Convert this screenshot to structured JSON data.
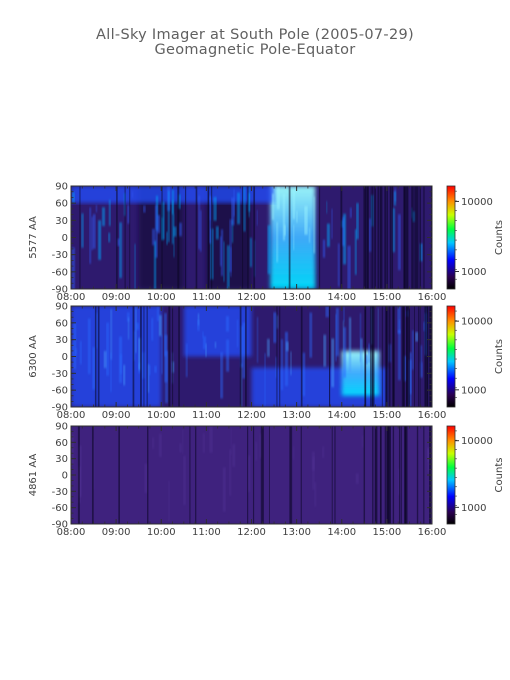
{
  "title_line1": "All-Sky Imager at South Pole (2005-07-29)",
  "title_line2": "Geomagnetic Pole-Equator",
  "chart_data": [
    {
      "type": "heatmap",
      "ylabel": "5577 AA",
      "x_ticks": [
        "08:00",
        "09:00",
        "10:00",
        "11:00",
        "12:00",
        "13:00",
        "14:00",
        "15:00",
        "16:00"
      ],
      "x_range": [
        "08:00",
        "16:00"
      ],
      "y_ticks": [
        90,
        60,
        30,
        0,
        -30,
        -60,
        -90
      ],
      "ylim": [
        -90,
        90
      ],
      "colorbar": {
        "label": "Counts",
        "ticks": [
          "10000",
          "1000"
        ],
        "scale": "log"
      },
      "features": [
        {
          "start": "12:25",
          "end": "13:25",
          "lat_min": -90,
          "lat_max": 90,
          "intensity": "high"
        },
        {
          "start": "09:30",
          "end": "10:30",
          "lat_min": -90,
          "lat_max": 90,
          "intensity": "low"
        },
        {
          "start": "11:00",
          "end": "12:00",
          "lat_min": -90,
          "lat_max": 90,
          "intensity": "low"
        },
        {
          "start": "08:00",
          "end": "12:30",
          "lat_min": 60,
          "lat_max": 90,
          "intensity": "medium"
        }
      ]
    },
    {
      "type": "heatmap",
      "ylabel": "6300 AA",
      "x_ticks": [
        "08:00",
        "09:00",
        "10:00",
        "11:00",
        "12:00",
        "13:00",
        "14:00",
        "15:00",
        "16:00"
      ],
      "x_range": [
        "08:00",
        "16:00"
      ],
      "y_ticks": [
        90,
        60,
        30,
        0,
        -30,
        -60,
        -90
      ],
      "ylim": [
        -90,
        90
      ],
      "colorbar": {
        "label": "Counts",
        "ticks": [
          "10000",
          "1000"
        ],
        "scale": "log"
      },
      "features": [
        {
          "start": "08:00",
          "end": "10:00",
          "lat_min": -90,
          "lat_max": 90,
          "intensity": "medium"
        },
        {
          "start": "10:30",
          "end": "12:00",
          "lat_min": 0,
          "lat_max": 90,
          "intensity": "medium"
        },
        {
          "start": "12:00",
          "end": "15:00",
          "lat_min": -90,
          "lat_max": -20,
          "intensity": "medium"
        },
        {
          "start": "14:00",
          "end": "14:50",
          "lat_min": -70,
          "lat_max": 10,
          "intensity": "high"
        }
      ]
    },
    {
      "type": "heatmap",
      "ylabel": "4861 AA",
      "x_ticks": [
        "08:00",
        "09:00",
        "10:00",
        "11:00",
        "12:00",
        "13:00",
        "14:00",
        "15:00",
        "16:00"
      ],
      "x_range": [
        "08:00",
        "16:00"
      ],
      "y_ticks": [
        90,
        60,
        30,
        0,
        -30,
        -60,
        -90
      ],
      "ylim": [
        -90,
        90
      ],
      "colorbar": {
        "label": "Counts",
        "ticks": [
          "10000",
          "1000"
        ],
        "scale": "log"
      },
      "features": [
        {
          "start": "08:00",
          "end": "16:00",
          "lat_min": -90,
          "lat_max": 90,
          "intensity": "low"
        }
      ]
    }
  ]
}
